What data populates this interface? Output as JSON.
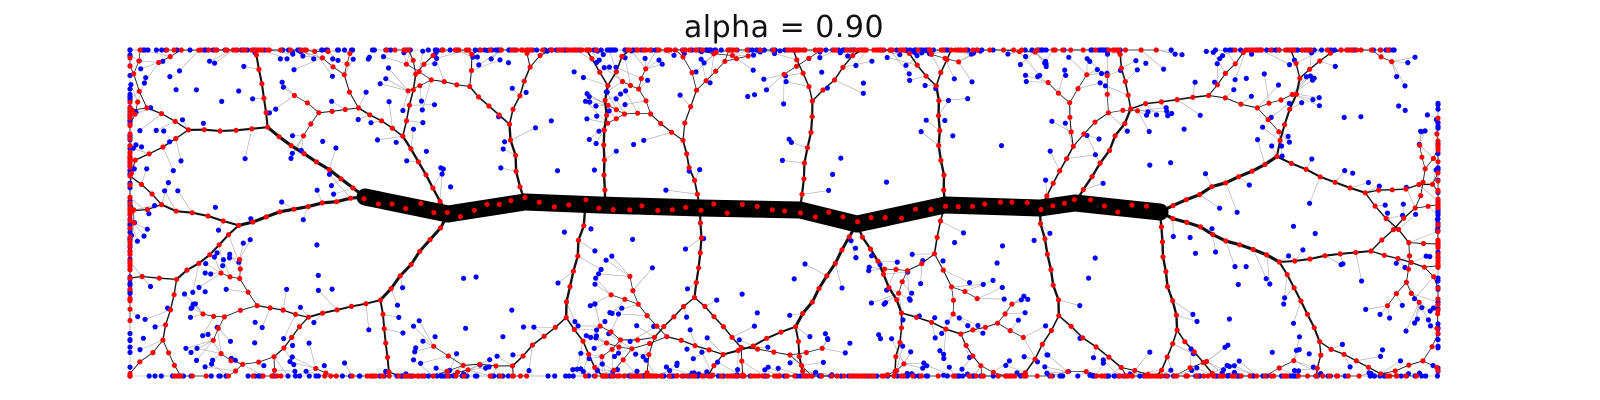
{
  "figure": {
    "title": "alpha = 0.90"
  },
  "colors": {
    "background": "#ffffff",
    "trunk": "#000000",
    "branch_edge": "#111111",
    "leaf_edge": "#a8a8a8",
    "internal_node": "#ff0000",
    "leaf_node": "#0000ff"
  }
}
